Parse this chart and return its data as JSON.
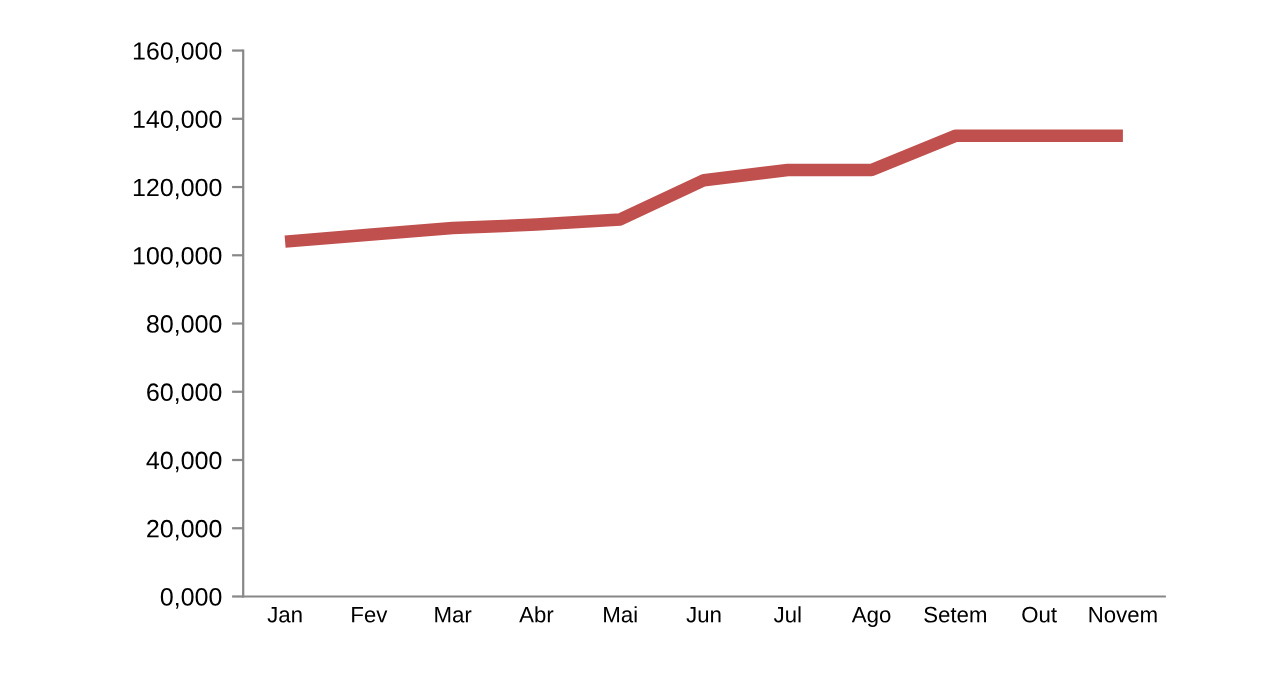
{
  "chart_data": {
    "type": "line",
    "categories": [
      "Jan",
      "Fev",
      "Mar",
      "Abr",
      "Mai",
      "Jun",
      "Jul",
      "Ago",
      "Setem",
      "Out",
      "Novem"
    ],
    "series": [
      {
        "color": "#c0504d",
        "values": [
          104000,
          106000,
          108000,
          109000,
          110500,
          122000,
          125000,
          125000,
          135000,
          135000,
          135000
        ]
      }
    ],
    "ylim": [
      0,
      160000
    ],
    "yticks": [
      {
        "value": 0,
        "label": "0,000"
      },
      {
        "value": 20000,
        "label": "20,000"
      },
      {
        "value": 40000,
        "label": "40,000"
      },
      {
        "value": 60000,
        "label": "60,000"
      },
      {
        "value": 80000,
        "label": "80,000"
      },
      {
        "value": 100000,
        "label": "100,000"
      },
      {
        "value": 120000,
        "label": "120,000"
      },
      {
        "value": 140000,
        "label": "140,000"
      },
      {
        "value": 160000,
        "label": "160,000"
      }
    ],
    "grid": false,
    "legend": false,
    "marker": "none",
    "line_style": "solid"
  }
}
